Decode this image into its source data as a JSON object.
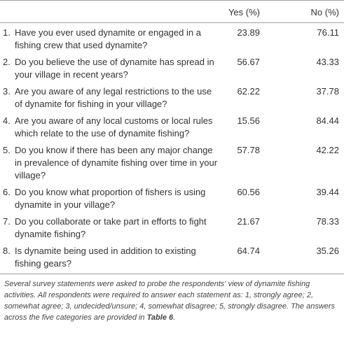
{
  "table": {
    "headers": {
      "question": "",
      "yes": "Yes (%)",
      "no": "No (%)"
    },
    "rows": [
      {
        "num": "1.",
        "question": "Have you ever used dynamite or engaged in a fishing crew that used dynamite?",
        "yes": "23.89",
        "no": "76.11"
      },
      {
        "num": "2.",
        "question": "Do you believe the use of dynamite has spread in your village in recent years?",
        "yes": "56.67",
        "no": "43.33"
      },
      {
        "num": "3.",
        "question": "Are you aware of any legal restrictions to the use of dynamite for fishing in your village?",
        "yes": "62.22",
        "no": "37.78"
      },
      {
        "num": "4.",
        "question": "Are you aware of any local customs or local rules which relate to the use of dynamite fishing?",
        "yes": "15.56",
        "no": "84.44"
      },
      {
        "num": "5.",
        "question": "Do you know if there has been any major change in prevalence of dynamite fishing over time in your village?",
        "yes": "57.78",
        "no": "42.22"
      },
      {
        "num": "6.",
        "question": "Do you know what proportion of fishers is using dynamite in your village?",
        "yes": "60.56",
        "no": "39.44"
      },
      {
        "num": "7.",
        "question": "Do you collaborate or take part in efforts to fight dynamite fishing?",
        "yes": "21.67",
        "no": "78.33"
      },
      {
        "num": "8.",
        "question": "Is dynamite being used in addition to existing fishing gears?",
        "yes": "64.74",
        "no": "35.26"
      }
    ]
  },
  "footnote": {
    "text": "Several survey statements were asked to probe the respondents' view of dynamite fishing activities. All respondents were required to answer each statement as: 1, strongly agree; 2, somewhat agree; 3, undecided/unsure; 4, somewhat disagree; 5, strongly disagree. The answers across the five categories are provided in ",
    "ref": "Table 6",
    "end": "."
  }
}
